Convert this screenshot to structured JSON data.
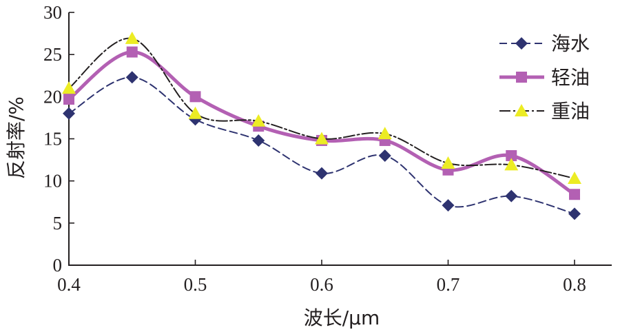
{
  "chart_data": {
    "type": "line",
    "xlabel": "波长/μm",
    "ylabel": "反射率/%",
    "xlim": [
      0.4,
      0.8
    ],
    "ylim": [
      0,
      30
    ],
    "xticks": [
      "0.4",
      "0.5",
      "0.6",
      "0.7",
      "0.8"
    ],
    "yticks": [
      "0",
      "5",
      "10",
      "15",
      "20",
      "25",
      "30"
    ],
    "grid": false,
    "legend_position": "top-right",
    "x": [
      0.4,
      0.45,
      0.5,
      0.55,
      0.6,
      0.65,
      0.7,
      0.75,
      0.8
    ],
    "series": [
      {
        "name": "海水",
        "values": [
          18.0,
          22.3,
          17.3,
          14.8,
          10.9,
          13.0,
          7.1,
          8.2,
          6.1
        ],
        "color": "#2e3370",
        "line_style": "dashed",
        "marker": "diamond"
      },
      {
        "name": "轻油",
        "values": [
          19.7,
          25.3,
          20.0,
          16.5,
          14.8,
          14.8,
          11.3,
          13.0,
          8.4
        ],
        "color": "#b360b3",
        "line_style": "solid-thick",
        "marker": "square"
      },
      {
        "name": "重油",
        "values": [
          21.0,
          26.9,
          18.0,
          17.1,
          15.0,
          15.6,
          12.1,
          11.9,
          10.3
        ],
        "color": "#231f20",
        "line_style": "dash-dot",
        "marker": "triangle",
        "marker_color": "#ecec24"
      }
    ]
  }
}
